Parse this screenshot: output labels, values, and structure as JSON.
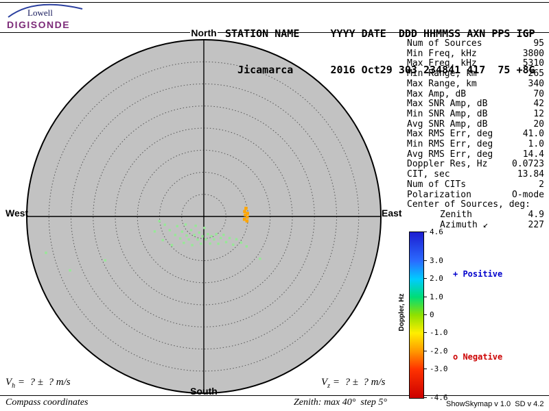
{
  "logo": {
    "brand": "Lowell",
    "product": "DIGISONDE"
  },
  "header": {
    "line1": "STATION NAME     YYYY DATE  DDD HHMMSS AXN PPS IGP",
    "line2": "  Jicamarca      2016 Oct29 303 234841 417  75 +8G"
  },
  "compass": {
    "north": "North",
    "south": "South",
    "east": "East",
    "west": "West"
  },
  "stats": [
    {
      "label": "Num of Sources",
      "value": "95"
    },
    {
      "label": "Min Freq, kHz",
      "value": "3800"
    },
    {
      "label": "Max Freq, kHz",
      "value": "5310"
    },
    {
      "label": "Min Range, km",
      "value": "265"
    },
    {
      "label": "Max Range, km",
      "value": "340"
    },
    {
      "label": "Max Amp, dB",
      "value": "70"
    },
    {
      "label": "Max SNR Amp, dB",
      "value": "42"
    },
    {
      "label": "Min SNR Amp, dB",
      "value": "12"
    },
    {
      "label": "Avg SNR Amp, dB",
      "value": "20"
    },
    {
      "label": "Max RMS Err, deg",
      "value": "41.0"
    },
    {
      "label": "Min RMS Err, deg",
      "value": "1.0"
    },
    {
      "label": "Avg RMS Err, deg",
      "value": "14.4"
    },
    {
      "label": "Doppler Res, Hz",
      "value": "0.0723"
    },
    {
      "label": "CIT, sec",
      "value": "13.84"
    },
    {
      "label": "Num of CITs",
      "value": "2"
    },
    {
      "label": "Polarization",
      "value": "O-mode"
    },
    {
      "label": "Center of Sources, deg:",
      "value": ""
    },
    {
      "label": "Zenith",
      "value": "4.9",
      "indent": true
    },
    {
      "label": "Azimuth ↙",
      "value": "227",
      "indent": true
    }
  ],
  "colorbar": {
    "title": "Doppler, Hz",
    "min": -4.6,
    "max": 4.6,
    "ticks": [
      "4.6",
      "3.0",
      "2.0",
      "1.0",
      "0",
      "-1.0",
      "-2.0",
      "-3.0",
      "-4.6"
    ],
    "gradient": [
      "#1d1dd0",
      "#2b6bff",
      "#00ccff",
      "#00dd77",
      "#90e000",
      "#ffee00",
      "#ff9900",
      "#ff3300",
      "#cc0000"
    ]
  },
  "legend": {
    "positive": "+ Positive",
    "negative": "o Negative",
    "positive_color": "#0000cc",
    "negative_color": "#cc0000"
  },
  "footer": {
    "vh_prefix": "V",
    "vh_sub": "h",
    "vh_rest": " =  ? ±  ? m/s",
    "vz_prefix": "V",
    "vz_sub": "z",
    "vz_rest": " =  ? ±  ? m/s",
    "coords_note": "Compass coordinates",
    "zenith_note": "Zenith: max 40°  step 5°",
    "version": "ShowSkymap v 1.0  SD v 4.2"
  },
  "chart_data": {
    "type": "scatter",
    "projection": "polar-skymap",
    "station": "Jicamarca",
    "date": "2016 Oct29",
    "day_of_year": "303",
    "time_hhmmss": "234841",
    "zenith_max_deg": 40,
    "zenith_step_deg": 5,
    "doppler_range_hz": [
      -4.6,
      4.6
    ],
    "num_sources_reported": 95,
    "center_of_sources": {
      "zenith_deg": 4.9,
      "azimuth_deg": 227
    },
    "disc_color": "#c2c2c2",
    "points_format": "[azimuth_deg, zenith_deg]",
    "groups": [
      {
        "name": "sources-near-zero-doppler",
        "doppler_hz_approx": 0.3,
        "color": "#97e897",
        "marker_px": 3.4,
        "points": [
          [
            257,
            36.6
          ],
          [
            248,
            32.6
          ],
          [
            246,
            24.4
          ],
          [
            264,
            10.1
          ],
          [
            240,
            10.7
          ],
          [
            248,
            8.3
          ],
          [
            228,
            9.7
          ],
          [
            237,
            7.7
          ],
          [
            250,
            6.4
          ],
          [
            227,
            7.3
          ],
          [
            235,
            6.0
          ],
          [
            217,
            7.5
          ],
          [
            246,
            4.5
          ],
          [
            222,
            5.8
          ],
          [
            213,
            6.2
          ],
          [
            223,
            4.2
          ],
          [
            202,
            7.0
          ],
          [
            207,
            4.7
          ],
          [
            221,
            2.8
          ],
          [
            195,
            5.4
          ],
          [
            196,
            3.8
          ],
          [
            186,
            6.2
          ],
          [
            184,
            4.5
          ],
          [
            177,
            2.6
          ],
          [
            175,
            5.2
          ],
          [
            167,
            4.1
          ],
          [
            167,
            6.3
          ],
          [
            159,
            4.8
          ],
          [
            156,
            5.7
          ],
          [
            145,
            4.9
          ],
          [
            152,
            7.0
          ],
          [
            142,
            6.2
          ],
          [
            133,
            6.1
          ],
          [
            139,
            7.7
          ],
          [
            130,
            7.6
          ],
          [
            134,
            9.2
          ],
          [
            125,
            9.0
          ],
          [
            125,
            10.3
          ],
          [
            125,
            11.8
          ],
          [
            127,
            15.9
          ],
          [
            258,
            9.0
          ],
          [
            253,
            11.6
          ]
        ]
      },
      {
        "name": "sources-negative-doppler",
        "doppler_hz_approx": -2.0,
        "color": "#ffa500",
        "marker_px": 4.5,
        "points": [
          [
            79,
            9.7
          ],
          [
            83,
            9.3
          ],
          [
            86,
            9.9
          ],
          [
            88,
            9.4
          ],
          [
            91,
            9.8
          ],
          [
            94,
            9.2
          ],
          [
            96,
            9.8
          ]
        ]
      }
    ]
  }
}
